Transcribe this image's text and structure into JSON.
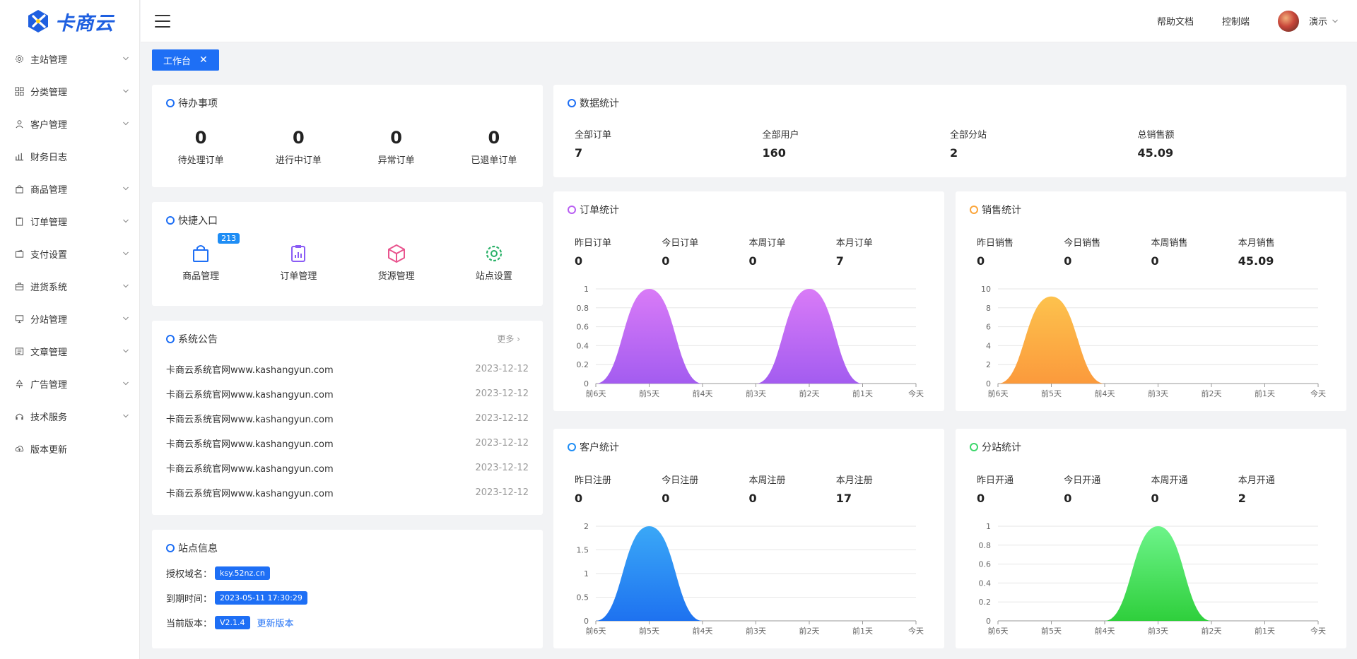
{
  "app": {
    "logo_text": "卡商云"
  },
  "sidebar": {
    "items": [
      {
        "label": "主站管理",
        "icon": "gear-icon",
        "has_arrow": true
      },
      {
        "label": "分类管理",
        "icon": "grid-icon",
        "has_arrow": true
      },
      {
        "label": "客户管理",
        "icon": "user-icon",
        "has_arrow": true
      },
      {
        "label": "财务日志",
        "icon": "bar-chart-icon",
        "has_arrow": false
      },
      {
        "label": "商品管理",
        "icon": "bag-icon",
        "has_arrow": true
      },
      {
        "label": "订单管理",
        "icon": "clipboard-icon",
        "has_arrow": true
      },
      {
        "label": "支付设置",
        "icon": "wallet-icon",
        "has_arrow": true
      },
      {
        "label": "进货系统",
        "icon": "briefcase-icon",
        "has_arrow": true
      },
      {
        "label": "分站管理",
        "icon": "monitor-icon",
        "has_arrow": true
      },
      {
        "label": "文章管理",
        "icon": "article-icon",
        "has_arrow": true
      },
      {
        "label": "广告管理",
        "icon": "megaphone-icon",
        "has_arrow": true
      },
      {
        "label": "技术服务",
        "icon": "headset-icon",
        "has_arrow": true
      },
      {
        "label": "版本更新",
        "icon": "cloud-upload-icon",
        "has_arrow": false
      }
    ]
  },
  "header": {
    "help_docs": "帮助文档",
    "console": "控制端",
    "user_name": "演示"
  },
  "tabs": [
    {
      "label": "工作台",
      "close": "✕"
    }
  ],
  "todo": {
    "title": "待办事项",
    "items": [
      {
        "value": "0",
        "label": "待处理订单"
      },
      {
        "value": "0",
        "label": "进行中订单"
      },
      {
        "value": "0",
        "label": "异常订单"
      },
      {
        "value": "0",
        "label": "已退单订单"
      }
    ]
  },
  "quick": {
    "title": "快捷入口",
    "items": [
      {
        "label": "商品管理",
        "icon": "shopping-bag-icon",
        "badge": "213"
      },
      {
        "label": "订单管理",
        "icon": "order-clipboard-icon"
      },
      {
        "label": "货源管理",
        "icon": "cube-icon"
      },
      {
        "label": "站点设置",
        "icon": "settings-gear-icon"
      }
    ]
  },
  "notice": {
    "title": "系统公告",
    "more": "更多",
    "items": [
      {
        "text": "卡商云系统官网www.kashangyun.com",
        "date": "2023-12-12"
      },
      {
        "text": "卡商云系统官网www.kashangyun.com",
        "date": "2023-12-12"
      },
      {
        "text": "卡商云系统官网www.kashangyun.com",
        "date": "2023-12-12"
      },
      {
        "text": "卡商云系统官网www.kashangyun.com",
        "date": "2023-12-12"
      },
      {
        "text": "卡商云系统官网www.kashangyun.com",
        "date": "2023-12-12"
      },
      {
        "text": "卡商云系统官网www.kashangyun.com",
        "date": "2023-12-12"
      }
    ]
  },
  "site": {
    "title": "站点信息",
    "domain_label": "授权域名：",
    "domain": "ksy.52nz.cn",
    "expire_label": "到期时间：",
    "expire": "2023-05-11 17:30:29",
    "version_label": "当前版本：",
    "version": "V2.1.4",
    "update_link": "更新版本"
  },
  "data_stats": {
    "title": "数据统计",
    "items": [
      {
        "label": "全部订单",
        "value": "7"
      },
      {
        "label": "全部用户",
        "value": "160"
      },
      {
        "label": "全部分站",
        "value": "2"
      },
      {
        "label": "总销售额",
        "value": "45.09"
      }
    ]
  },
  "colors": {
    "primary": "#1e6ff5",
    "order": "#b95ff2",
    "sales": "#fba53a",
    "customer": "#1e8df5",
    "substation": "#3bd66a"
  },
  "chart_data": [
    {
      "id": "orders",
      "type": "area",
      "title": "订单统计",
      "stats": [
        {
          "label": "昨日订单",
          "value": "0"
        },
        {
          "label": "今日订单",
          "value": "0"
        },
        {
          "label": "本周订单",
          "value": "0"
        },
        {
          "label": "本月订单",
          "value": "7"
        }
      ],
      "categories": [
        "前6天",
        "前5天",
        "前4天",
        "前3天",
        "前2天",
        "前1天",
        "今天"
      ],
      "values": [
        0,
        1,
        0,
        0,
        1,
        0,
        0
      ],
      "ylim": [
        0,
        1
      ],
      "yticks": [
        "0",
        "0.2",
        "0.4",
        "0.6",
        "0.8",
        "1"
      ],
      "color_top": "#d97bf7",
      "color_bottom": "#a35cf0",
      "ring": "#b95ff2"
    },
    {
      "id": "sales",
      "type": "area",
      "title": "销售统计",
      "stats": [
        {
          "label": "昨日销售",
          "value": "0"
        },
        {
          "label": "今日销售",
          "value": "0"
        },
        {
          "label": "本周销售",
          "value": "0"
        },
        {
          "label": "本月销售",
          "value": "45.09"
        }
      ],
      "categories": [
        "前6天",
        "前5天",
        "前4天",
        "前3天",
        "前2天",
        "前1天",
        "今天"
      ],
      "values": [
        0,
        9.2,
        0,
        0,
        0,
        0,
        0
      ],
      "ylim": [
        0,
        10
      ],
      "yticks": [
        "0",
        "2",
        "4",
        "6",
        "8",
        "10"
      ],
      "color_top": "#fdc24d",
      "color_bottom": "#fb9a3c",
      "ring": "#fba53a"
    },
    {
      "id": "customers",
      "type": "area",
      "title": "客户统计",
      "stats": [
        {
          "label": "昨日注册",
          "value": "0"
        },
        {
          "label": "今日注册",
          "value": "0"
        },
        {
          "label": "本周注册",
          "value": "0"
        },
        {
          "label": "本月注册",
          "value": "17"
        }
      ],
      "categories": [
        "前6天",
        "前5天",
        "前4天",
        "前3天",
        "前2天",
        "前1天",
        "今天"
      ],
      "values": [
        0,
        2,
        0,
        0,
        0,
        0,
        0
      ],
      "ylim": [
        0,
        2
      ],
      "yticks": [
        "0",
        "0.5",
        "1",
        "1.5",
        "2"
      ],
      "color_top": "#3aa8f7",
      "color_bottom": "#1e72f0",
      "ring": "#1e8df5"
    },
    {
      "id": "substations",
      "type": "area",
      "title": "分站统计",
      "stats": [
        {
          "label": "昨日开通",
          "value": "0"
        },
        {
          "label": "今日开通",
          "value": "0"
        },
        {
          "label": "本周开通",
          "value": "0"
        },
        {
          "label": "本月开通",
          "value": "2"
        }
      ],
      "categories": [
        "前6天",
        "前5天",
        "前4天",
        "前3天",
        "前2天",
        "前1天",
        "今天"
      ],
      "values": [
        0,
        0,
        0,
        1,
        0,
        0,
        0
      ],
      "ylim": [
        0,
        1
      ],
      "yticks": [
        "0",
        "0.2",
        "0.4",
        "0.6",
        "0.8",
        "1"
      ],
      "color_top": "#6df48a",
      "color_bottom": "#2fcf3c",
      "ring": "#3bd66a"
    }
  ]
}
